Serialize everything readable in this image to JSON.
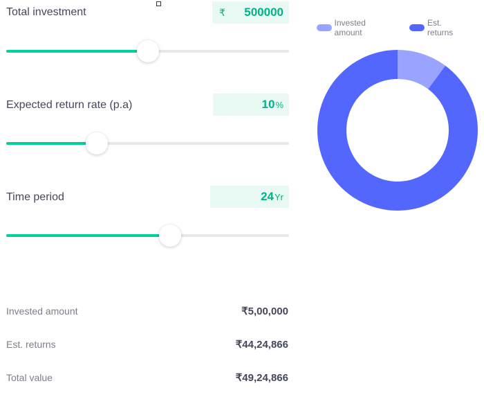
{
  "colors": {
    "accent": "#00d09c",
    "accent_text": "#00b386",
    "invested": "#98a4ff",
    "returns": "#5367ff"
  },
  "investment": {
    "label": "Total investment",
    "currency_prefix": "₹",
    "value": "500000",
    "slider_fraction": 0.5
  },
  "return_rate": {
    "label": "Expected return rate (p.a)",
    "value": "10",
    "unit": "%",
    "slider_fraction": 0.32
  },
  "time_period": {
    "label": "Time period",
    "value": "24",
    "unit": "Yr",
    "slider_fraction": 0.58
  },
  "summary": {
    "invested_label": "Invested amount",
    "invested_value": "₹5,00,000",
    "returns_label": "Est. returns",
    "returns_value": "₹44,24,866",
    "total_label": "Total value",
    "total_value": "₹49,24,866"
  },
  "legend": {
    "invested": "Invested amount",
    "returns": "Est. returns"
  },
  "donut": {
    "invested": 500000,
    "returns": 4424866
  }
}
